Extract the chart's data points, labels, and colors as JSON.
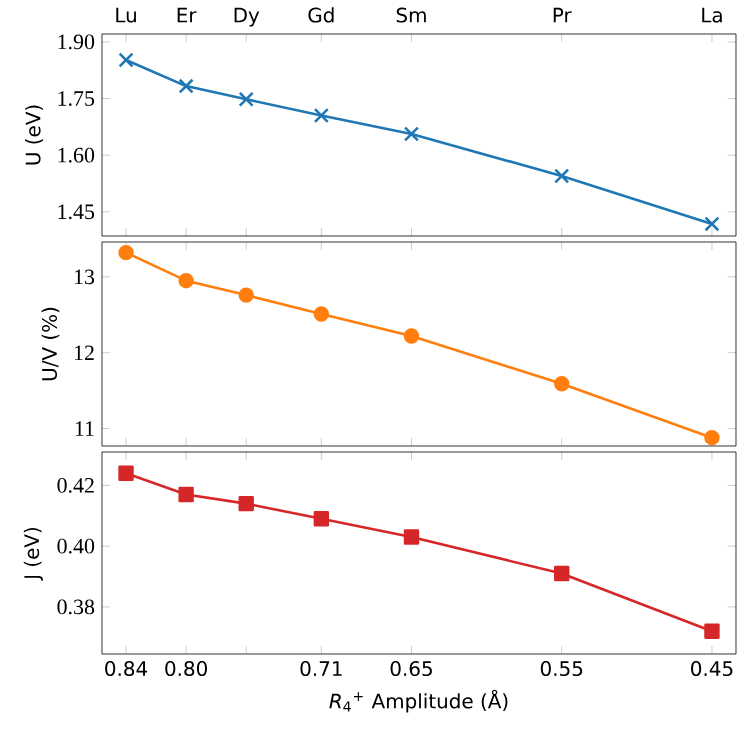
{
  "chart_data": [
    {
      "type": "line",
      "ylabel": "U (eV)",
      "x": [
        0.84,
        0.8,
        0.76,
        0.71,
        0.65,
        0.55,
        0.45
      ],
      "series": [
        {
          "color": "#1f77b4",
          "marker": "cross",
          "values": [
            1.852,
            1.783,
            1.748,
            1.705,
            1.656,
            1.545,
            1.418
          ]
        }
      ],
      "xlim": [
        0.856,
        0.434
      ],
      "ylim": [
        1.386,
        1.921
      ],
      "yticks": [
        {
          "value": 1.45,
          "label": "1.45"
        },
        {
          "value": 1.6,
          "label": "1.60"
        },
        {
          "value": 1.75,
          "label": "1.75"
        },
        {
          "value": 1.9,
          "label": "1.90"
        }
      ],
      "xticks": [
        {
          "value": 0.84,
          "label": null
        },
        {
          "value": 0.8,
          "label": null
        },
        {
          "value": 0.76,
          "label": null
        },
        {
          "value": 0.71,
          "label": null
        },
        {
          "value": 0.65,
          "label": null
        },
        {
          "value": 0.55,
          "label": null
        },
        {
          "value": 0.45,
          "label": null
        }
      ],
      "annotations": [
        "Lu",
        "Er",
        "Dy",
        "Gd",
        "Sm",
        "Pr",
        "La"
      ],
      "tick_labels": "y"
    },
    {
      "type": "line",
      "ylabel": "U/V (%)",
      "x": [
        0.84,
        0.8,
        0.76,
        0.71,
        0.65,
        0.55,
        0.45
      ],
      "series": [
        {
          "color": "#ff7f0e",
          "marker": "circle",
          "values": [
            13.32,
            12.95,
            12.76,
            12.51,
            12.22,
            11.59,
            10.88
          ]
        }
      ],
      "xlim": [
        0.856,
        0.434
      ],
      "ylim": [
        10.77,
        13.46
      ],
      "yticks": [
        11,
        12,
        13
      ],
      "xticks": [
        {
          "value": 0.84,
          "label": null
        },
        {
          "value": 0.8,
          "label": null
        },
        {
          "value": 0.76,
          "label": null
        },
        {
          "value": 0.71,
          "label": null
        },
        {
          "value": 0.65,
          "label": null
        },
        {
          "value": 0.55,
          "label": null
        },
        {
          "value": 0.45,
          "label": null
        }
      ],
      "tick_labels": "y"
    },
    {
      "type": "line",
      "ylabel": "J (eV)",
      "xlabel": "*R*$_{4}$$^{+}$ Amplitude (Å)",
      "x": [
        0.84,
        0.8,
        0.76,
        0.71,
        0.65,
        0.55,
        0.45
      ],
      "series": [
        {
          "color": "#d62728",
          "marker": "square",
          "values": [
            0.424,
            0.417,
            0.414,
            0.409,
            0.403,
            0.391,
            0.372
          ]
        }
      ],
      "xlim": [
        0.856,
        0.434
      ],
      "ylim": [
        0.3645,
        0.431
      ],
      "yticks": [
        {
          "value": 0.38,
          "label": "0.38"
        },
        {
          "value": 0.4,
          "label": "0.40"
        },
        {
          "value": 0.42,
          "label": "0.42"
        }
      ],
      "xticks": [
        {
          "value": 0.84,
          "label": "0.84"
        },
        {
          "value": 0.8,
          "label": "0.80"
        },
        {
          "value": 0.76,
          "label": null
        },
        {
          "value": 0.71,
          "label": "0.71"
        },
        {
          "value": 0.65,
          "label": "0.65"
        },
        {
          "value": 0.55,
          "label": "0.55"
        },
        {
          "value": 0.45,
          "label": "0.45"
        }
      ]
    }
  ]
}
